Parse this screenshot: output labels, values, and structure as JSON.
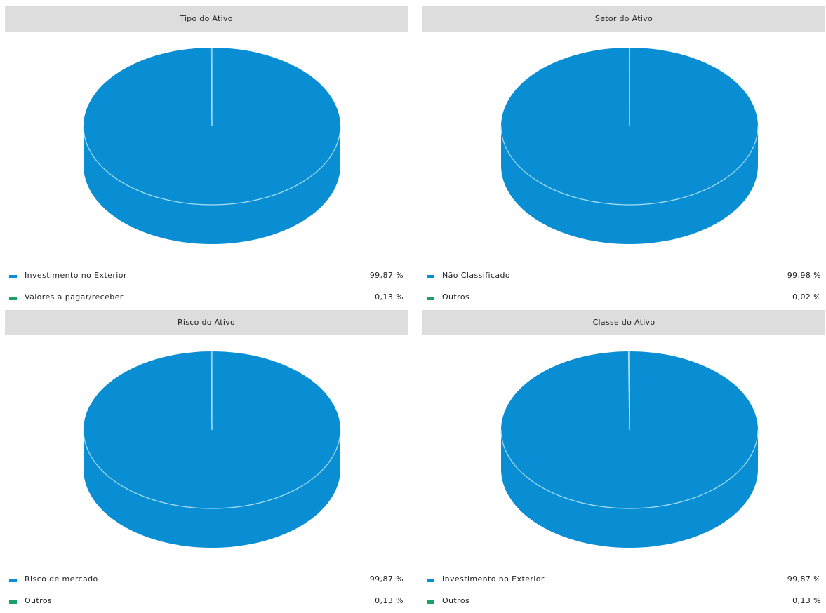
{
  "colors": {
    "series_primary": "#0a8ed3",
    "series_secondary": "#1aa06a",
    "pie_highlight": "#a8dff5",
    "title_band": "#dddddd"
  },
  "chart_data": [
    {
      "type": "pie",
      "title": "Tipo do Ativo",
      "slices": [
        {
          "label": "Investimento no Exterior",
          "value": 99.87,
          "display": "99,87 %"
        },
        {
          "label": "Valores a pagar/receber",
          "value": 0.13,
          "display": "0,13 %"
        }
      ],
      "style": "3d",
      "legend": "bottom"
    },
    {
      "type": "pie",
      "title": "Setor do Ativo",
      "slices": [
        {
          "label": "Não Classificado",
          "value": 99.98,
          "display": "99,98 %"
        },
        {
          "label": "Outros",
          "value": 0.02,
          "display": "0,02 %"
        }
      ],
      "style": "3d",
      "legend": "bottom"
    },
    {
      "type": "pie",
      "title": "Risco do Ativo",
      "slices": [
        {
          "label": "Risco de mercado",
          "value": 99.87,
          "display": "99,87 %"
        },
        {
          "label": "Outros",
          "value": 0.13,
          "display": "0,13 %"
        }
      ],
      "style": "3d",
      "legend": "bottom"
    },
    {
      "type": "pie",
      "title": "Classe do Ativo",
      "slices": [
        {
          "label": "Investimento no Exterior",
          "value": 99.87,
          "display": "99,87 %"
        },
        {
          "label": "Outros",
          "value": 0.13,
          "display": "0,13 %"
        }
      ],
      "style": "3d",
      "legend": "bottom"
    }
  ]
}
